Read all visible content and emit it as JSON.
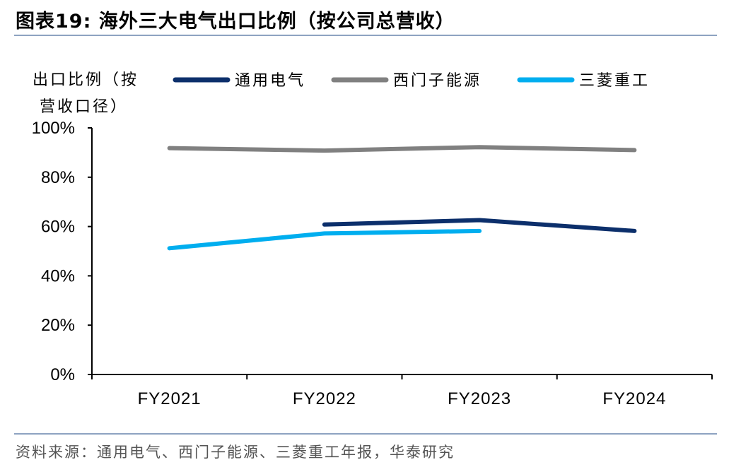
{
  "figure": {
    "title": "图表19:   海外三大电气出口比例（按公司总营收）",
    "source": "资料来源：通用电气、西门子能源、三菱重工年报，华泰研究"
  },
  "chart_data": {
    "type": "line",
    "title": "",
    "ylabel_lines": [
      "出口比例（按",
      "营收口径）"
    ],
    "xlabel": "",
    "categories": [
      "FY2021",
      "FY2022",
      "FY2023",
      "FY2024"
    ],
    "yticks": [
      "0%",
      "20%",
      "40%",
      "60%",
      "80%",
      "100%"
    ],
    "ylim": [
      0,
      100
    ],
    "grid": false,
    "legend_position": "top",
    "series": [
      {
        "name": "通用电气",
        "color": "#0c2f6b",
        "values": [
          null,
          60.8,
          62.6,
          58.2
        ]
      },
      {
        "name": "西门子能源",
        "color": "#808080",
        "values": [
          91.8,
          90.8,
          92.2,
          91.0
        ]
      },
      {
        "name": "三菱重工",
        "color": "#00aeef",
        "values": [
          51.2,
          57.2,
          58.2,
          null
        ]
      }
    ]
  }
}
